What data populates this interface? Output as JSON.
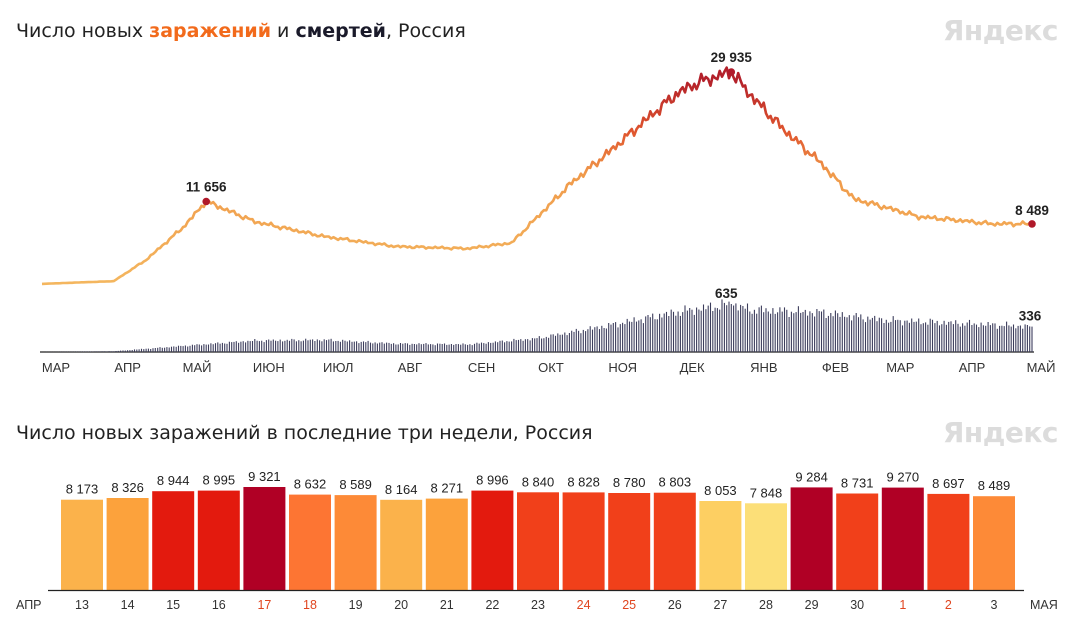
{
  "chart1": {
    "title_parts": [
      "Число новых ",
      "заражений",
      " и ",
      "смертей",
      ", Россия"
    ],
    "logo": "Яндекс",
    "months": [
      "МАР",
      "АПР",
      "МАЙ",
      "ИЮН",
      "ИЮЛ",
      "АВГ",
      "СЕН",
      "ОКТ",
      "НОЯ",
      "ДЕК",
      "ЯНВ",
      "ФЕВ",
      "МАР",
      "АПР",
      "МАЙ"
    ],
    "peak_cases_label": "29 935",
    "first_peak_label": "11 656",
    "last_cases_label": "8 489",
    "peak_deaths_label": "635",
    "last_deaths_label": "336"
  },
  "chart_data": [
    {
      "type": "line",
      "series": [
        {
          "name": "заражений",
          "x": [
            "2020-03-01",
            "2020-04-01",
            "2020-04-15",
            "2020-05-01",
            "2020-05-11",
            "2020-06-01",
            "2020-07-01",
            "2020-08-01",
            "2020-09-01",
            "2020-09-20",
            "2020-10-15",
            "2020-11-01",
            "2020-11-20",
            "2020-12-01",
            "2020-12-10",
            "2020-12-24",
            "2021-01-01",
            "2021-01-15",
            "2021-02-01",
            "2021-02-15",
            "2021-03-01",
            "2021-03-15",
            "2021-04-01",
            "2021-04-15",
            "2021-05-03"
          ],
          "values": [
            20,
            400,
            3400,
            8000,
            11656,
            8800,
            6700,
            5300,
            5000,
            5800,
            14000,
            18600,
            24000,
            27000,
            28500,
            29935,
            26800,
            22000,
            17000,
            12000,
            10800,
            9500,
            9000,
            8500,
            8489
          ]
        },
        {
          "name": "смертей",
          "x": [
            "2020-03-01",
            "2020-04-01",
            "2020-05-01",
            "2020-06-01",
            "2020-07-01",
            "2020-08-01",
            "2020-09-01",
            "2020-10-01",
            "2020-11-01",
            "2020-12-01",
            "2020-12-24",
            "2021-01-01",
            "2021-02-01",
            "2021-03-01",
            "2021-04-01",
            "2021-05-03"
          ],
          "values": [
            0,
            10,
            80,
            150,
            160,
            110,
            100,
            180,
            350,
            530,
            635,
            560,
            520,
            420,
            380,
            336
          ]
        }
      ]
    },
    {
      "type": "bar",
      "title_parts": [
        "Число новых заражений в последние три недели, Россия"
      ],
      "logo": "Яндекс",
      "month_start": "АПР",
      "month_end": "МАЯ",
      "categories": [
        "13",
        "14",
        "15",
        "16",
        "17",
        "18",
        "19",
        "20",
        "21",
        "22",
        "23",
        "24",
        "25",
        "26",
        "27",
        "28",
        "29",
        "30",
        "1",
        "2",
        "3"
      ],
      "values": [
        8173,
        8326,
        8944,
        8995,
        9321,
        8632,
        8589,
        8164,
        8271,
        8996,
        8840,
        8828,
        8780,
        8803,
        8053,
        7848,
        9284,
        8731,
        9270,
        8697,
        8489
      ],
      "value_labels": [
        "8 173",
        "8 326",
        "8 944",
        "8 995",
        "9 321",
        "8 632",
        "8 589",
        "8 164",
        "8 271",
        "8 996",
        "8 840",
        "8 828",
        "8 780",
        "8 803",
        "8 053",
        "7 848",
        "9 284",
        "8 731",
        "9 270",
        "8 697",
        "8 489"
      ],
      "colors": [
        "#fbb24b",
        "#fca23c",
        "#e31a0e",
        "#e31a0e",
        "#b00025",
        "#fd7533",
        "#fd8a37",
        "#fbb24b",
        "#fca23c",
        "#e31a0e",
        "#f1401a",
        "#f1401a",
        "#f1401a",
        "#f1401a",
        "#fdcf62",
        "#fcdf78",
        "#b00025",
        "#f1401a",
        "#b00025",
        "#f1401a",
        "#fd8a37"
      ],
      "holiday_labels": [
        "17",
        "18",
        "24",
        "25",
        "1",
        "2"
      ],
      "ylim": [
        0,
        9321
      ]
    }
  ]
}
